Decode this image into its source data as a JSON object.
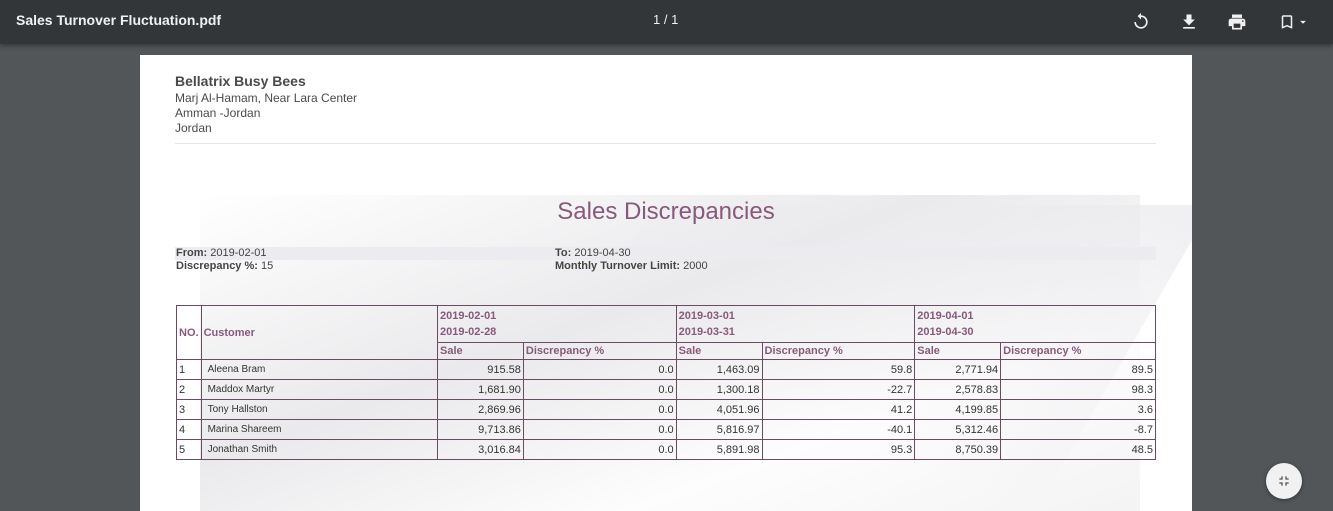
{
  "toolbar": {
    "title": "Sales Turnover Fluctuation.pdf",
    "page_indicator": "1 / 1",
    "icons": [
      "rotate-icon",
      "download-icon",
      "print-icon",
      "bookmark-icon"
    ]
  },
  "company": {
    "name": "Bellatrix Busy Bees",
    "address_lines": [
      "Marj Al-Hamam, Near Lara Center",
      "Amman -Jordan",
      "Jordan"
    ]
  },
  "report": {
    "title": "Sales Discrepancies",
    "from_label": "From:",
    "from_value": "2019-02-01",
    "to_label": "To:",
    "to_value": "2019-04-30",
    "discrepancy_label": "Discrepancy %:",
    "discrepancy_value": "15",
    "limit_label": "Monthly Turnover Limit:",
    "limit_value": "2000"
  },
  "table": {
    "col_no": "NO.",
    "col_customer": "Customer",
    "periods": [
      {
        "start": "2019-02-01",
        "end": "2019-02-28"
      },
      {
        "start": "2019-03-01",
        "end": "2019-03-31"
      },
      {
        "start": "2019-04-01",
        "end": "2019-04-30"
      }
    ],
    "sub_sale": "Sale",
    "sub_disc": "Discrepancy %",
    "rows": [
      {
        "no": "1",
        "customer": "Aleena Bram",
        "cells": [
          "915.58",
          "0.0",
          "1,463.09",
          "59.8",
          "2,771.94",
          "89.5"
        ]
      },
      {
        "no": "2",
        "customer": "Maddox Martyr",
        "cells": [
          "1,681.90",
          "0.0",
          "1,300.18",
          "-22.7",
          "2,578.83",
          "98.3"
        ]
      },
      {
        "no": "3",
        "customer": "Tony Hallston",
        "cells": [
          "2,869.96",
          "0.0",
          "4,051.96",
          "41.2",
          "4,199.85",
          "3.6"
        ]
      },
      {
        "no": "4",
        "customer": "Marina Shareem",
        "cells": [
          "9,713.86",
          "0.0",
          "5,816.97",
          "-40.1",
          "5,312.46",
          "-8.7"
        ]
      },
      {
        "no": "5",
        "customer": "Jonathan Smith",
        "cells": [
          "3,016.84",
          "0.0",
          "5,891.98",
          "95.3",
          "8,750.39",
          "48.5"
        ]
      }
    ]
  },
  "colors": {
    "toolbar_bg": "#323639",
    "viewer_bg": "#525659",
    "accent": "#875a7b"
  }
}
